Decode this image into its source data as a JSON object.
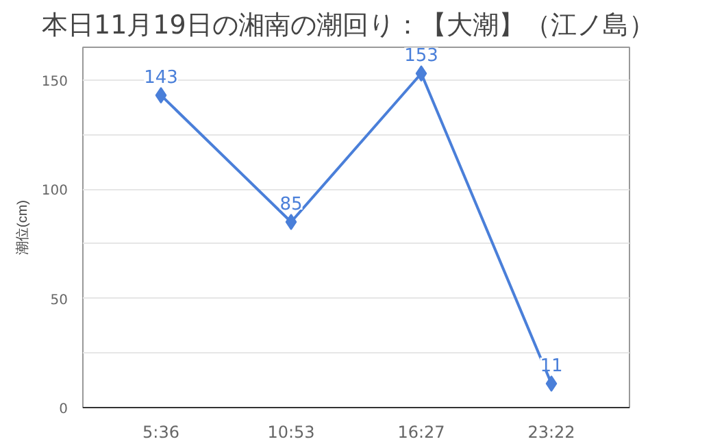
{
  "chart_data": {
    "type": "line",
    "title": "本日11月19日の湘南の潮回り：【大潮】（江ノ島）",
    "ylabel": "潮位(cm)",
    "categories": [
      "5:36",
      "10:53",
      "16:27",
      "23:22"
    ],
    "series": [
      {
        "color": "#4a7fd9",
        "values": [
          143,
          85,
          153,
          11
        ]
      }
    ],
    "ylim": [
      0,
      165
    ],
    "yticks": [
      0,
      {
        "value": 25,
        "label": null
      },
      50,
      {
        "value": 75,
        "label": null
      },
      100,
      {
        "value": 125,
        "label": null
      },
      150
    ],
    "grid": "y",
    "marker": "diamond",
    "line_style": "solid",
    "data_labels": true
  }
}
